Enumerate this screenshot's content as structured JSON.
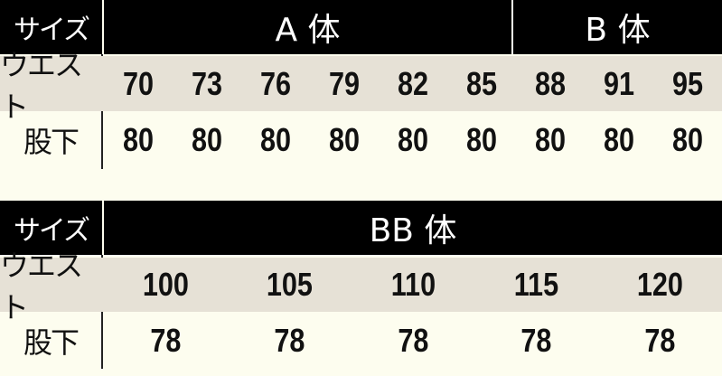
{
  "tables": [
    {
      "header": {
        "label": "サイズ",
        "groups": [
          "A 体",
          "B 体"
        ]
      },
      "rows": [
        {
          "label": "ウエスト",
          "values": [
            70,
            73,
            76,
            79,
            82,
            85,
            88,
            91,
            95
          ]
        },
        {
          "label": "股下",
          "values": [
            80,
            80,
            80,
            80,
            80,
            80,
            80,
            80,
            80
          ]
        }
      ]
    },
    {
      "header": {
        "label": "サイズ",
        "groups": [
          "BB 体"
        ]
      },
      "rows": [
        {
          "label": "ウエスト",
          "values": [
            100,
            105,
            110,
            115,
            120
          ]
        },
        {
          "label": "股下",
          "values": [
            78,
            78,
            78,
            78,
            78
          ]
        }
      ]
    }
  ]
}
